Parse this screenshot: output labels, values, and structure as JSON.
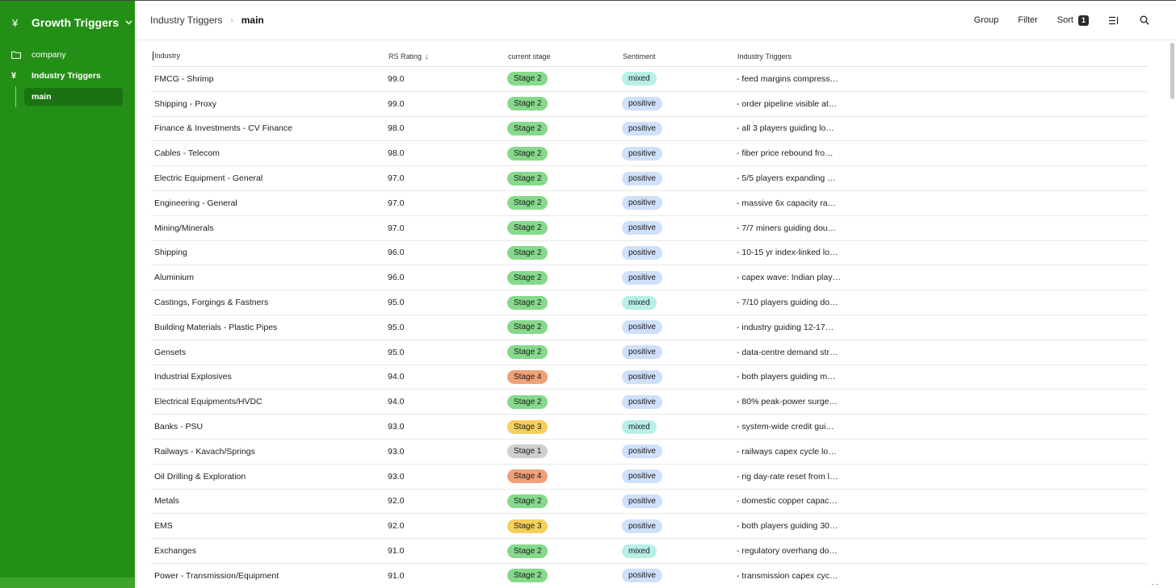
{
  "sidebar": {
    "workspace_icon": "¥",
    "workspace_title": "Growth Triggers",
    "items": [
      {
        "label": "company",
        "icon": "folder-icon"
      },
      {
        "label": "Industry Triggers",
        "icon": "yen-icon"
      }
    ],
    "sub_item": "main"
  },
  "header": {
    "breadcrumb_parent": "Industry Triggers",
    "breadcrumb_sep": "›",
    "breadcrumb_current": "main",
    "group_label": "Group",
    "filter_label": "Filter",
    "sort_label": "Sort",
    "sort_count": "1"
  },
  "table": {
    "columns": [
      "Industry",
      "RS Rating",
      "current stage",
      "Sentiment",
      "Industry Triggers"
    ],
    "sort_arrow": "↓",
    "rows": [
      {
        "industry": "FMCG - Shrimp",
        "rs": "99.0",
        "stage": "Stage 2",
        "sentiment": "mixed",
        "trigger": "- feed margins compress…"
      },
      {
        "industry": "Shipping - Proxy",
        "rs": "99.0",
        "stage": "Stage 2",
        "sentiment": "positive",
        "trigger": "- order pipeline visible at…"
      },
      {
        "industry": "Finance & Investments - CV Finance",
        "rs": "98.0",
        "stage": "Stage 2",
        "sentiment": "positive",
        "trigger": "- all 3 players guiding lo…"
      },
      {
        "industry": "Cables - Telecom",
        "rs": "98.0",
        "stage": "Stage 2",
        "sentiment": "positive",
        "trigger": "- fiber price rebound fro…"
      },
      {
        "industry": "Electric Equipment - General",
        "rs": "97.0",
        "stage": "Stage 2",
        "sentiment": "positive",
        "trigger": "- 5/5 players expanding …"
      },
      {
        "industry": "Engineering - General",
        "rs": "97.0",
        "stage": "Stage 2",
        "sentiment": "positive",
        "trigger": "- massive 6x capacity ra…"
      },
      {
        "industry": "Mining/Minerals",
        "rs": "97.0",
        "stage": "Stage 2",
        "sentiment": "positive",
        "trigger": "- 7/7 miners guiding dou…"
      },
      {
        "industry": "Shipping",
        "rs": "96.0",
        "stage": "Stage 2",
        "sentiment": "positive",
        "trigger": "- 10-15 yr index-linked lo…"
      },
      {
        "industry": "Aluminium",
        "rs": "96.0",
        "stage": "Stage 2",
        "sentiment": "positive",
        "trigger": "- capex wave: Indian play…"
      },
      {
        "industry": "Castings, Forgings & Fastners",
        "rs": "95.0",
        "stage": "Stage 2",
        "sentiment": "mixed",
        "trigger": "- 7/10 players guiding do…"
      },
      {
        "industry": "Building Materials - Plastic Pipes",
        "rs": "95.0",
        "stage": "Stage 2",
        "sentiment": "positive",
        "trigger": "- industry guiding 12-17…"
      },
      {
        "industry": "Gensets",
        "rs": "95.0",
        "stage": "Stage 2",
        "sentiment": "positive",
        "trigger": "- data-centre demand str…"
      },
      {
        "industry": "Industrial Explosives",
        "rs": "94.0",
        "stage": "Stage 4",
        "sentiment": "positive",
        "trigger": "- both players guiding m…"
      },
      {
        "industry": "Electrical Equipments/HVDC",
        "rs": "94.0",
        "stage": "Stage 2",
        "sentiment": "positive",
        "trigger": "- 80% peak-power surge…"
      },
      {
        "industry": "Banks - PSU",
        "rs": "93.0",
        "stage": "Stage 3",
        "sentiment": "mixed",
        "trigger": "- system-wide credit gui…"
      },
      {
        "industry": "Railways - Kavach/Springs",
        "rs": "93.0",
        "stage": "Stage 1",
        "sentiment": "positive",
        "trigger": "- railways capex cycle lo…"
      },
      {
        "industry": "Oil Drilling & Exploration",
        "rs": "93.0",
        "stage": "Stage 4",
        "sentiment": "positive",
        "trigger": "- rig day-rate reset from l…"
      },
      {
        "industry": "Metals",
        "rs": "92.0",
        "stage": "Stage 2",
        "sentiment": "positive",
        "trigger": "- domestic copper capac…"
      },
      {
        "industry": "EMS",
        "rs": "92.0",
        "stage": "Stage 3",
        "sentiment": "positive",
        "trigger": "- both players guiding 30…"
      },
      {
        "industry": "Exchanges",
        "rs": "91.0",
        "stage": "Stage 2",
        "sentiment": "mixed",
        "trigger": "- regulatory overhang do…"
      },
      {
        "industry": "Power - Transmission/Equipment",
        "rs": "91.0",
        "stage": "Stage 2",
        "sentiment": "positive",
        "trigger": "- transmission capex cyc…"
      }
    ]
  },
  "colors": {
    "sidebar_bg": "#248f17",
    "stage_1": "#cfcfd2",
    "stage_2": "#86d98b",
    "stage_3": "#f5cf5c",
    "stage_4": "#f0a078",
    "mixed": "#b8efe6",
    "positive": "#cfe0fb"
  }
}
